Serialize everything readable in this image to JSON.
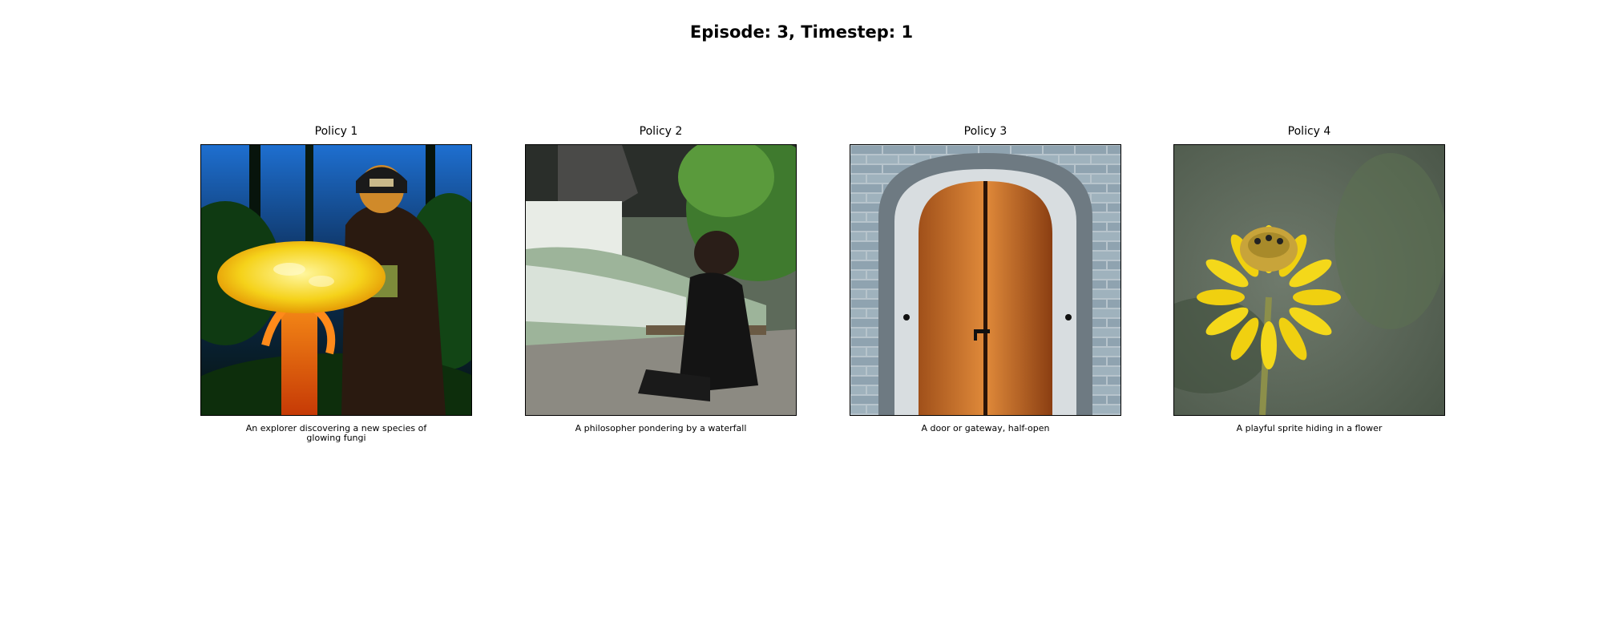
{
  "figure": {
    "suptitle": "Episode: 3, Timestep: 1"
  },
  "panels": [
    {
      "title": "Policy 1",
      "caption": "An explorer discovering a new species of glowing fungi"
    },
    {
      "title": "Policy 2",
      "caption": "A philosopher pondering by a waterfall"
    },
    {
      "title": "Policy 3",
      "caption": "A door or gateway, half-open"
    },
    {
      "title": "Policy 4",
      "caption": "A playful sprite hiding in a flower"
    }
  ]
}
